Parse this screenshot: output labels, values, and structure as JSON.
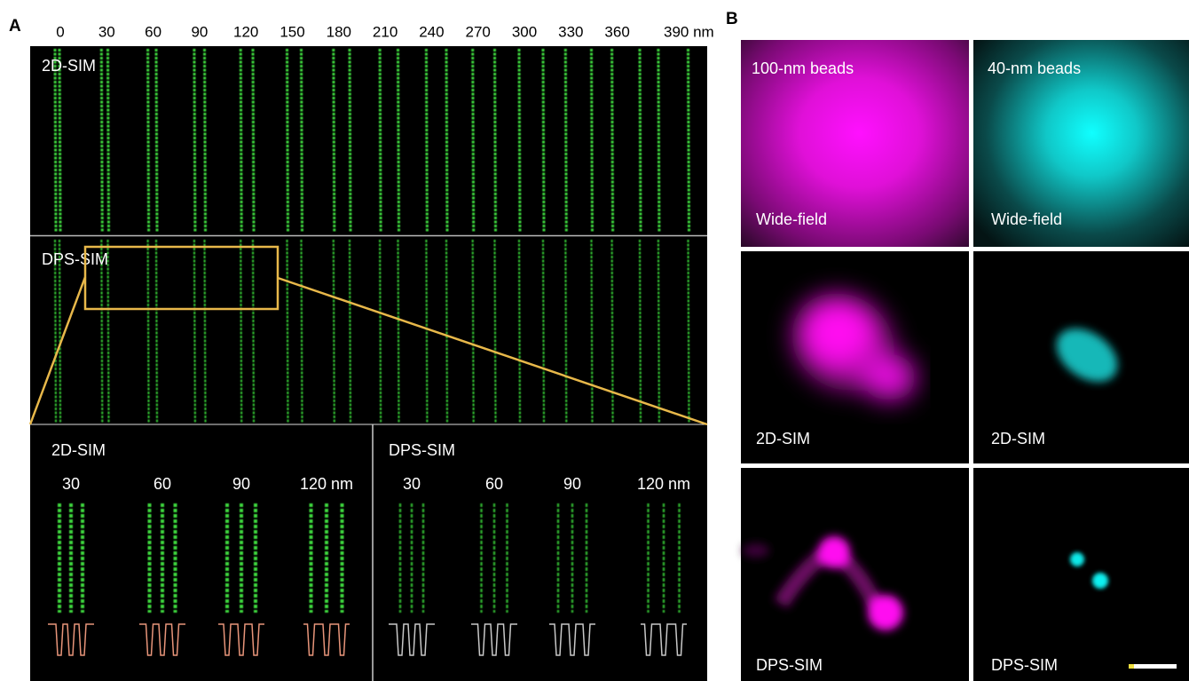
{
  "panel_a": {
    "label": "A",
    "scale": [
      "0",
      "30",
      "60",
      "90",
      "120",
      "150",
      "180",
      "210",
      "240",
      "270",
      "300",
      "330",
      "360",
      "390 nm"
    ],
    "top_label": "2D-SIM",
    "bottom_label": "DPS-SIM",
    "insets": [
      {
        "label": "2D-SIM",
        "spacings": [
          "30",
          "60",
          "90",
          "120 nm"
        ]
      },
      {
        "label": "DPS-SIM",
        "spacings": [
          "30",
          "60",
          "90",
          "120 nm"
        ]
      }
    ]
  },
  "panel_b": {
    "label": "B",
    "columns": [
      "100-nm beads",
      "40-nm beads"
    ],
    "rows": [
      [
        "Wide-field",
        "Wide-field"
      ],
      [
        "2D-SIM",
        "2D-SIM"
      ],
      [
        "DPS-SIM",
        "DPS-SIM"
      ]
    ]
  }
}
